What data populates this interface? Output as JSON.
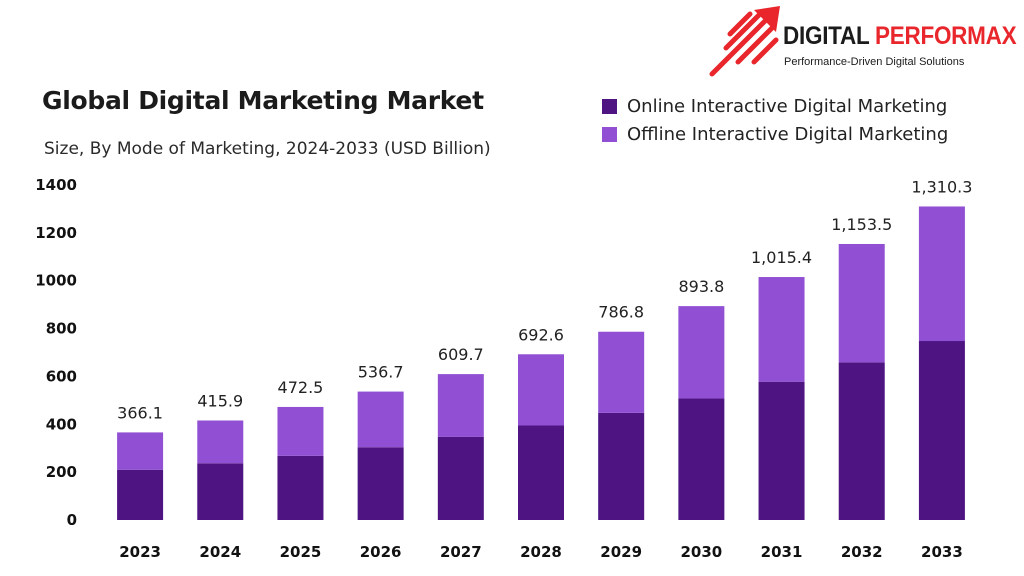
{
  "header": {
    "title": "Global Digital Marketing Market",
    "subtitle": "Size, By Mode of Marketing, 2024-2033 (USD Billion)"
  },
  "logo": {
    "brand_part1": "DIGITAL ",
    "brand_part2": "PERFORMAX",
    "tagline": "Performance-Driven Digital Solutions",
    "icon": "rocket-arrow-icon"
  },
  "colors": {
    "online": "#4e1582",
    "offline": "#9150d3",
    "brand_red": "#e8262b"
  },
  "chart_data": {
    "type": "bar",
    "stacked": true,
    "title": "Global Digital Marketing Market",
    "subtitle": "Size, By Mode of Marketing, 2024-2033 (USD Billion)",
    "categories": [
      "2023",
      "2024",
      "2025",
      "2026",
      "2027",
      "2028",
      "2029",
      "2030",
      "2031",
      "2032",
      "2033"
    ],
    "series": [
      {
        "name": "Online Interactive Digital Marketing",
        "values": [
          210,
          237,
          268,
          304,
          348,
          395,
          448,
          508,
          578,
          659,
          748
        ]
      },
      {
        "name": "Offline Interactive Digital Marketing",
        "values": [
          156.1,
          178.9,
          204.5,
          232.7,
          261.7,
          297.6,
          338.8,
          385.8,
          437.4,
          494.5,
          562.3
        ]
      }
    ],
    "totals": [
      "366.1",
      "415.9",
      "472.5",
      "536.7",
      "609.7",
      "692.6",
      "786.8",
      "893.8",
      "1,015.4",
      "1,153.5",
      "1,310.3"
    ],
    "y_ticks": [
      "0",
      "200",
      "400",
      "600",
      "800",
      "1000",
      "1200",
      "1400"
    ],
    "ylim": [
      0,
      1400
    ],
    "grid": false,
    "legend_position": "top-right"
  }
}
